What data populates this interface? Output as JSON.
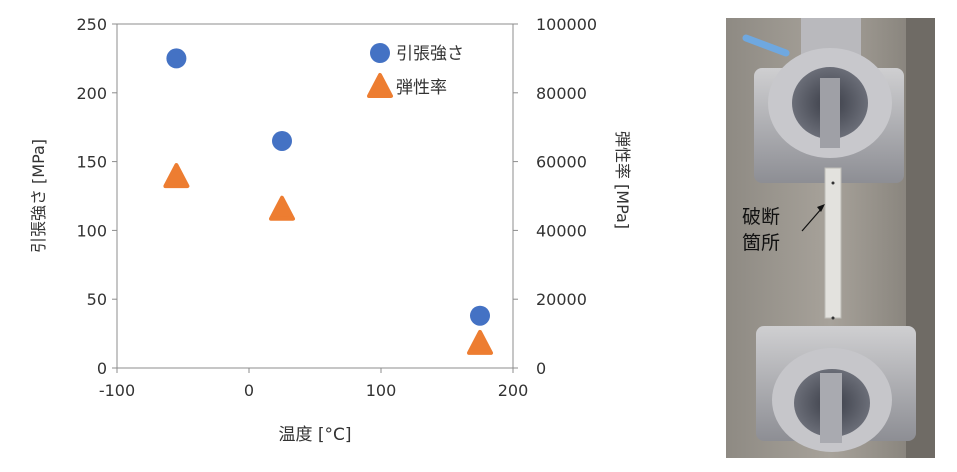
{
  "chart_data": {
    "type": "scatter",
    "xlabel": "温度 [°C]",
    "ylabel": "引張強さ [MPa]",
    "y2label": "弾性率 [MPa]",
    "xlim": [
      -100,
      200
    ],
    "ylim": [
      0,
      250
    ],
    "y2lim": [
      0,
      100000
    ],
    "x_ticks": [
      "-100",
      "0",
      "100",
      "200"
    ],
    "y_ticks": [
      "0",
      "50",
      "100",
      "150",
      "200",
      "250"
    ],
    "y2_ticks": [
      "0",
      "20000",
      "40000",
      "60000",
      "80000",
      "100000"
    ],
    "grid": false,
    "legend_position": "top-right",
    "series": [
      {
        "name": "引張強さ",
        "axis": "left",
        "marker": "circle",
        "color": "#4472c4",
        "x": [
          -55,
          25,
          175
        ],
        "y": [
          225,
          165,
          38
        ]
      },
      {
        "name": "弾性率",
        "axis": "right",
        "marker": "triangle",
        "color": "#ed7d31",
        "x": [
          -55,
          25,
          175
        ],
        "y": [
          55500,
          46000,
          7000
        ]
      }
    ]
  },
  "photo": {
    "annotation_line1": "破断",
    "annotation_line2": "箇所"
  }
}
